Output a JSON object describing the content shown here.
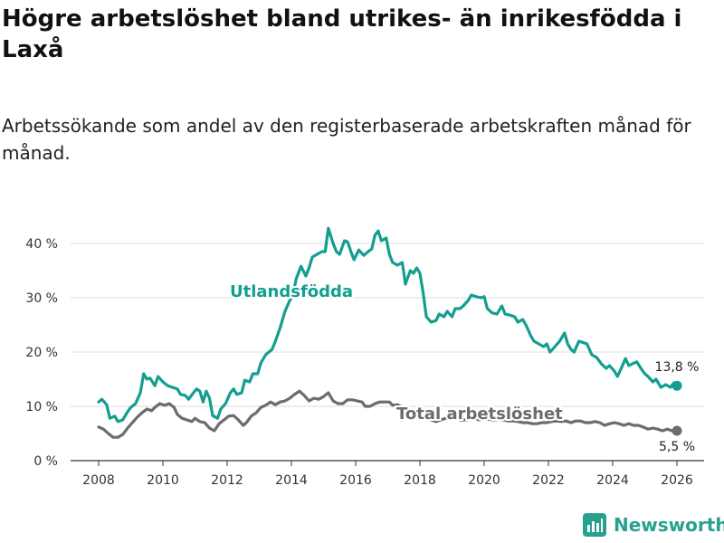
{
  "chart_data": {
    "type": "line",
    "title": "Högre arbetslöshet bland utrikes- än inrikesfödda i Laxå",
    "subtitle": "Arbetssökande som andel av den registerbaserade arbetskraften månad för månad.",
    "y_ticks": [
      "0 %",
      "10 %",
      "20 %",
      "30 %",
      "40 %"
    ],
    "x_ticks": [
      "2008",
      "2010",
      "2012",
      "2014",
      "2016",
      "2018",
      "2020",
      "2022",
      "2024",
      "2026"
    ],
    "ylim": [
      0,
      45
    ],
    "xlim": [
      2007.5,
      2026.6
    ],
    "colors": {
      "utlandsfodda": "#139e8f",
      "total": "#6b6b70",
      "grid": "#dddddd",
      "axis": "#333333"
    },
    "series": [
      {
        "name": "Utlandsfödda",
        "label": "Utlandsfödda",
        "end_label": "13,8 %",
        "color": "#139e8f",
        "points": [
          [
            2008.0,
            10.8
          ],
          [
            2008.1,
            11.3
          ],
          [
            2008.25,
            10.3
          ],
          [
            2008.35,
            7.8
          ],
          [
            2008.5,
            8.2
          ],
          [
            2008.6,
            7.2
          ],
          [
            2008.75,
            7.5
          ],
          [
            2008.9,
            9.0
          ],
          [
            2009.0,
            9.8
          ],
          [
            2009.15,
            10.5
          ],
          [
            2009.3,
            12.5
          ],
          [
            2009.4,
            16.0
          ],
          [
            2009.5,
            15.0
          ],
          [
            2009.6,
            15.2
          ],
          [
            2009.75,
            13.8
          ],
          [
            2009.85,
            15.5
          ],
          [
            2010.0,
            14.5
          ],
          [
            2010.15,
            13.8
          ],
          [
            2010.3,
            13.5
          ],
          [
            2010.45,
            13.2
          ],
          [
            2010.55,
            12.2
          ],
          [
            2010.7,
            12.0
          ],
          [
            2010.8,
            11.3
          ],
          [
            2010.95,
            12.5
          ],
          [
            2011.05,
            13.2
          ],
          [
            2011.15,
            12.8
          ],
          [
            2011.25,
            10.8
          ],
          [
            2011.35,
            12.8
          ],
          [
            2011.45,
            11.5
          ],
          [
            2011.55,
            8.3
          ],
          [
            2011.7,
            7.8
          ],
          [
            2011.8,
            9.5
          ],
          [
            2011.95,
            10.5
          ],
          [
            2012.1,
            12.5
          ],
          [
            2012.2,
            13.2
          ],
          [
            2012.3,
            12.2
          ],
          [
            2012.45,
            12.5
          ],
          [
            2012.55,
            14.8
          ],
          [
            2012.7,
            14.5
          ],
          [
            2012.8,
            16.0
          ],
          [
            2012.95,
            16.0
          ],
          [
            2013.05,
            18.0
          ],
          [
            2013.2,
            19.5
          ],
          [
            2013.4,
            20.5
          ],
          [
            2013.5,
            22.0
          ],
          [
            2013.65,
            24.5
          ],
          [
            2013.8,
            27.5
          ],
          [
            2013.95,
            29.5
          ],
          [
            2014.05,
            30.5
          ],
          [
            2014.15,
            33.5
          ],
          [
            2014.3,
            35.8
          ],
          [
            2014.45,
            34.0
          ],
          [
            2014.55,
            35.5
          ],
          [
            2014.65,
            37.5
          ],
          [
            2014.8,
            38.0
          ],
          [
            2014.95,
            38.5
          ],
          [
            2015.05,
            38.5
          ],
          [
            2015.15,
            42.8
          ],
          [
            2015.3,
            40.0
          ],
          [
            2015.4,
            38.5
          ],
          [
            2015.5,
            38.0
          ],
          [
            2015.65,
            40.5
          ],
          [
            2015.75,
            40.3
          ],
          [
            2015.85,
            38.5
          ],
          [
            2015.95,
            37.0
          ],
          [
            2016.1,
            38.8
          ],
          [
            2016.25,
            37.8
          ],
          [
            2016.35,
            38.3
          ],
          [
            2016.5,
            39.0
          ],
          [
            2016.6,
            41.5
          ],
          [
            2016.7,
            42.3
          ],
          [
            2016.8,
            40.5
          ],
          [
            2016.95,
            41.0
          ],
          [
            2017.05,
            38.0
          ],
          [
            2017.15,
            36.5
          ],
          [
            2017.3,
            36.0
          ],
          [
            2017.45,
            36.5
          ],
          [
            2017.55,
            32.5
          ],
          [
            2017.7,
            35.0
          ],
          [
            2017.8,
            34.5
          ],
          [
            2017.9,
            35.5
          ],
          [
            2018.0,
            34.5
          ],
          [
            2018.1,
            31.0
          ],
          [
            2018.2,
            26.5
          ],
          [
            2018.35,
            25.5
          ],
          [
            2018.5,
            25.8
          ],
          [
            2018.6,
            27.0
          ],
          [
            2018.75,
            26.5
          ],
          [
            2018.85,
            27.5
          ],
          [
            2019.0,
            26.5
          ],
          [
            2019.1,
            28.0
          ],
          [
            2019.25,
            28.0
          ],
          [
            2019.35,
            28.5
          ],
          [
            2019.5,
            29.5
          ],
          [
            2019.6,
            30.5
          ],
          [
            2019.75,
            30.2
          ],
          [
            2019.9,
            30.0
          ],
          [
            2020.0,
            30.2
          ],
          [
            2020.1,
            28.0
          ],
          [
            2020.25,
            27.2
          ],
          [
            2020.4,
            27.0
          ],
          [
            2020.55,
            28.5
          ],
          [
            2020.65,
            27.0
          ],
          [
            2020.8,
            26.8
          ],
          [
            2020.95,
            26.5
          ],
          [
            2021.05,
            25.5
          ],
          [
            2021.2,
            26.0
          ],
          [
            2021.3,
            25.0
          ],
          [
            2021.45,
            23.0
          ],
          [
            2021.55,
            22.0
          ],
          [
            2021.7,
            21.5
          ],
          [
            2021.85,
            21.0
          ],
          [
            2021.95,
            21.5
          ],
          [
            2022.05,
            20.0
          ],
          [
            2022.2,
            21.0
          ],
          [
            2022.35,
            22.0
          ],
          [
            2022.5,
            23.5
          ],
          [
            2022.6,
            21.5
          ],
          [
            2022.7,
            20.5
          ],
          [
            2022.8,
            20.0
          ],
          [
            2022.95,
            22.0
          ],
          [
            2023.05,
            21.8
          ],
          [
            2023.2,
            21.5
          ],
          [
            2023.35,
            19.5
          ],
          [
            2023.5,
            19.0
          ],
          [
            2023.65,
            17.8
          ],
          [
            2023.8,
            17.0
          ],
          [
            2023.9,
            17.5
          ],
          [
            2024.05,
            16.5
          ],
          [
            2024.15,
            15.5
          ],
          [
            2024.25,
            16.8
          ],
          [
            2024.4,
            18.8
          ],
          [
            2024.5,
            17.5
          ],
          [
            2024.6,
            17.8
          ],
          [
            2024.75,
            18.2
          ],
          [
            2024.9,
            16.8
          ],
          [
            2025.0,
            16.0
          ],
          [
            2025.1,
            15.5
          ],
          [
            2025.25,
            14.5
          ],
          [
            2025.35,
            15.0
          ],
          [
            2025.5,
            13.5
          ],
          [
            2025.65,
            14.0
          ],
          [
            2025.8,
            13.5
          ],
          [
            2025.9,
            14.3
          ],
          [
            2026.0,
            13.8
          ]
        ]
      },
      {
        "name": "Total arbetslöshet",
        "label": "Total arbetslöshet",
        "end_label": "5,5 %",
        "color": "#6b6b70",
        "points": [
          [
            2008.0,
            6.2
          ],
          [
            2008.15,
            5.8
          ],
          [
            2008.3,
            5.0
          ],
          [
            2008.45,
            4.3
          ],
          [
            2008.6,
            4.3
          ],
          [
            2008.75,
            4.8
          ],
          [
            2008.9,
            6.0
          ],
          [
            2009.05,
            7.0
          ],
          [
            2009.2,
            8.0
          ],
          [
            2009.35,
            8.8
          ],
          [
            2009.5,
            9.5
          ],
          [
            2009.65,
            9.2
          ],
          [
            2009.75,
            9.8
          ],
          [
            2009.9,
            10.5
          ],
          [
            2010.05,
            10.2
          ],
          [
            2010.2,
            10.5
          ],
          [
            2010.35,
            9.8
          ],
          [
            2010.45,
            8.5
          ],
          [
            2010.6,
            7.8
          ],
          [
            2010.75,
            7.5
          ],
          [
            2010.9,
            7.2
          ],
          [
            2011.0,
            7.8
          ],
          [
            2011.15,
            7.2
          ],
          [
            2011.3,
            7.0
          ],
          [
            2011.45,
            6.0
          ],
          [
            2011.6,
            5.5
          ],
          [
            2011.75,
            6.8
          ],
          [
            2011.9,
            7.5
          ],
          [
            2012.05,
            8.2
          ],
          [
            2012.2,
            8.3
          ],
          [
            2012.35,
            7.5
          ],
          [
            2012.5,
            6.5
          ],
          [
            2012.6,
            7.0
          ],
          [
            2012.75,
            8.2
          ],
          [
            2012.9,
            8.8
          ],
          [
            2013.05,
            9.8
          ],
          [
            2013.2,
            10.2
          ],
          [
            2013.35,
            10.8
          ],
          [
            2013.5,
            10.3
          ],
          [
            2013.65,
            10.8
          ],
          [
            2013.8,
            11.0
          ],
          [
            2013.95,
            11.5
          ],
          [
            2014.1,
            12.2
          ],
          [
            2014.25,
            12.8
          ],
          [
            2014.4,
            12.0
          ],
          [
            2014.55,
            11.0
          ],
          [
            2014.7,
            11.5
          ],
          [
            2014.85,
            11.3
          ],
          [
            2015.0,
            11.8
          ],
          [
            2015.15,
            12.5
          ],
          [
            2015.3,
            11.0
          ],
          [
            2015.45,
            10.5
          ],
          [
            2015.6,
            10.5
          ],
          [
            2015.75,
            11.2
          ],
          [
            2015.9,
            11.2
          ],
          [
            2016.05,
            11.0
          ],
          [
            2016.2,
            10.8
          ],
          [
            2016.3,
            10.0
          ],
          [
            2016.45,
            10.0
          ],
          [
            2016.6,
            10.5
          ],
          [
            2016.75,
            10.8
          ],
          [
            2016.9,
            10.8
          ],
          [
            2017.05,
            10.8
          ],
          [
            2017.15,
            10.2
          ],
          [
            2017.3,
            10.3
          ],
          [
            2017.45,
            9.8
          ],
          [
            2017.6,
            8.5
          ],
          [
            2017.75,
            8.8
          ],
          [
            2017.9,
            8.5
          ],
          [
            2018.05,
            7.8
          ],
          [
            2018.2,
            7.8
          ],
          [
            2018.35,
            7.5
          ],
          [
            2018.5,
            7.2
          ],
          [
            2018.65,
            7.5
          ],
          [
            2018.8,
            7.8
          ],
          [
            2018.95,
            7.7
          ],
          [
            2019.1,
            7.8
          ],
          [
            2019.25,
            7.5
          ],
          [
            2019.4,
            7.5
          ],
          [
            2019.55,
            7.6
          ],
          [
            2019.7,
            7.8
          ],
          [
            2019.85,
            7.5
          ],
          [
            2020.0,
            7.8
          ],
          [
            2020.15,
            7.6
          ],
          [
            2020.3,
            7.5
          ],
          [
            2020.45,
            7.6
          ],
          [
            2020.6,
            7.5
          ],
          [
            2020.75,
            7.3
          ],
          [
            2020.9,
            7.3
          ],
          [
            2021.05,
            7.2
          ],
          [
            2021.2,
            7.0
          ],
          [
            2021.35,
            7.0
          ],
          [
            2021.5,
            6.8
          ],
          [
            2021.65,
            6.8
          ],
          [
            2021.8,
            7.0
          ],
          [
            2021.95,
            7.0
          ],
          [
            2022.1,
            7.2
          ],
          [
            2022.25,
            7.3
          ],
          [
            2022.4,
            7.2
          ],
          [
            2022.55,
            7.3
          ],
          [
            2022.7,
            7.0
          ],
          [
            2022.85,
            7.3
          ],
          [
            2023.0,
            7.3
          ],
          [
            2023.15,
            7.0
          ],
          [
            2023.3,
            7.0
          ],
          [
            2023.45,
            7.2
          ],
          [
            2023.6,
            7.0
          ],
          [
            2023.75,
            6.5
          ],
          [
            2023.9,
            6.8
          ],
          [
            2024.05,
            7.0
          ],
          [
            2024.2,
            6.8
          ],
          [
            2024.35,
            6.5
          ],
          [
            2024.5,
            6.8
          ],
          [
            2024.65,
            6.5
          ],
          [
            2024.8,
            6.5
          ],
          [
            2024.95,
            6.2
          ],
          [
            2025.1,
            5.8
          ],
          [
            2025.25,
            6.0
          ],
          [
            2025.4,
            5.8
          ],
          [
            2025.55,
            5.5
          ],
          [
            2025.7,
            5.8
          ],
          [
            2025.85,
            5.5
          ],
          [
            2026.0,
            5.5
          ]
        ]
      }
    ]
  },
  "brand": {
    "name": "Newsworthy",
    "color": "#27a08f",
    "icon": "chart-icon"
  }
}
